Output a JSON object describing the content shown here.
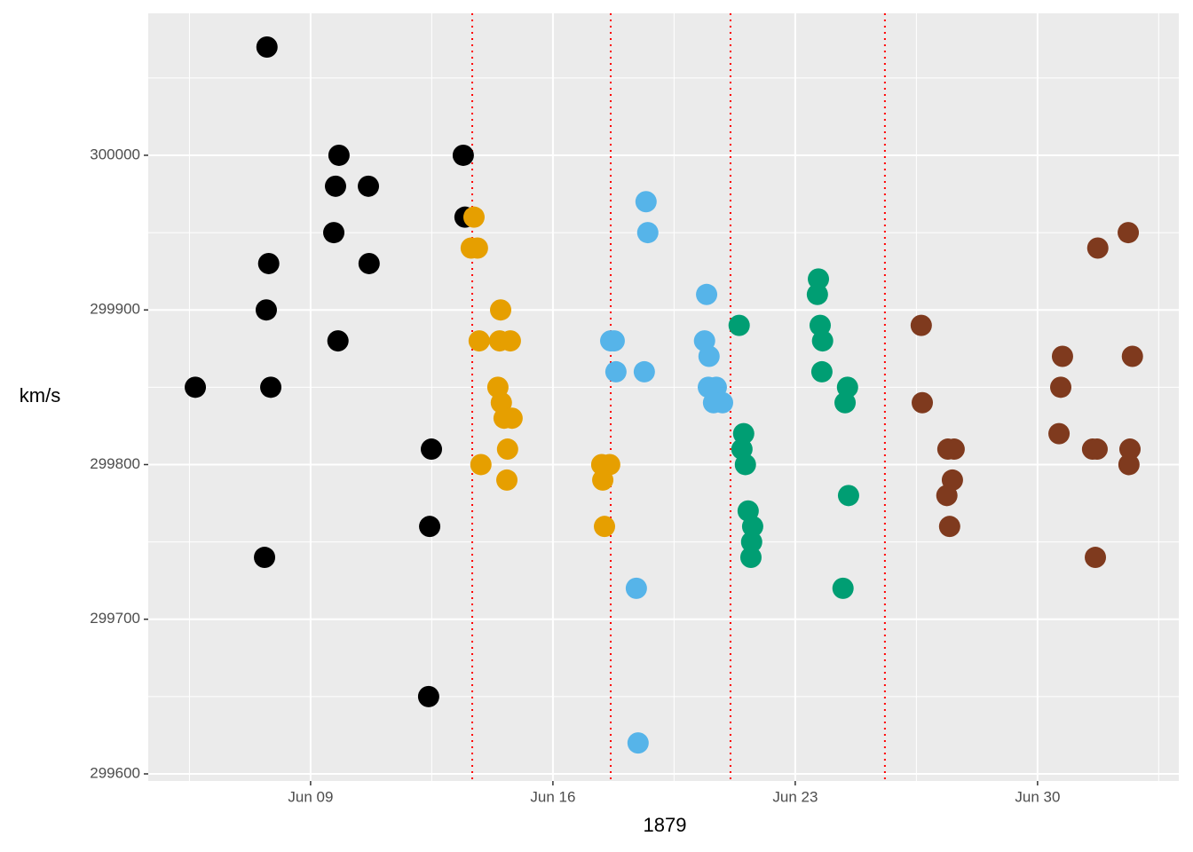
{
  "chart_data": {
    "type": "scatter",
    "xlabel": "1879",
    "ylabel": "km/s",
    "xlim": [
      4.31,
      34.08
    ],
    "ylim": [
      299595.4,
      300091.8
    ],
    "xticks": [
      {
        "value": 9,
        "label": "Jun 09"
      },
      {
        "value": 16,
        "label": "Jun 16"
      },
      {
        "value": 23,
        "label": "Jun 23"
      },
      {
        "value": 30,
        "label": "Jun 30"
      }
    ],
    "x_minor_ticks": [
      5.5,
      12.5,
      19.5,
      26.5,
      33.5
    ],
    "yticks": [
      299600,
      299700,
      299800,
      299900,
      300000
    ],
    "y_minor_ticks": [
      299650,
      299750,
      299850,
      299950,
      300050
    ],
    "grid": true,
    "vlines": [
      13.67,
      17.67,
      21.13,
      25.59
    ],
    "vline_color": "#ff0000",
    "series": [
      {
        "color": "#000000",
        "x": [
          7.74,
          5.67,
          9.82,
          9.72,
          10.67,
          9.67,
          7.79,
          10.69,
          7.72,
          9.79,
          7.85,
          12.49,
          12.44,
          7.67,
          12.41,
          13.41,
          13.46
        ],
        "values": [
          300070,
          299850,
          300000,
          299980,
          299980,
          299950,
          299930,
          299930,
          299900,
          299880,
          299850,
          299810,
          299760,
          299740,
          299650,
          300000,
          299960
        ]
      },
      {
        "color": "#E69F00",
        "x": [
          13.72,
          13.64,
          13.82,
          14.49,
          13.87,
          14.46,
          14.77,
          14.41,
          14.51,
          14.59,
          14.82,
          14.69,
          13.92,
          14.67,
          17.41,
          17.64,
          17.44,
          17.49
        ],
        "values": [
          299960,
          299940,
          299940,
          299900,
          299880,
          299880,
          299880,
          299850,
          299840,
          299830,
          299830,
          299810,
          299800,
          299790,
          299800,
          299800,
          299790,
          299760
        ]
      },
      {
        "color": "#56B4E9",
        "x": [
          18.69,
          18.74,
          20.44,
          17.67,
          17.77,
          20.38,
          20.51,
          17.82,
          18.64,
          20.49,
          20.72,
          20.64,
          20.9,
          18.41,
          18.46
        ],
        "values": [
          299970,
          299950,
          299910,
          299880,
          299880,
          299880,
          299870,
          299860,
          299860,
          299850,
          299850,
          299840,
          299840,
          299720,
          299620
        ]
      },
      {
        "color": "#009E73",
        "x": [
          21.38,
          21.51,
          21.46,
          21.56,
          21.64,
          21.77,
          21.74,
          21.72,
          23.67,
          23.64,
          23.72,
          23.79,
          23.77,
          24.51,
          24.44,
          24.54,
          24.38
        ],
        "values": [
          299890,
          299820,
          299810,
          299800,
          299770,
          299760,
          299750,
          299740,
          299920,
          299910,
          299890,
          299880,
          299860,
          299850,
          299840,
          299780,
          299720
        ]
      },
      {
        "color": "#7F3A1E",
        "x": [
          26.64,
          26.67,
          27.41,
          27.59,
          27.54,
          27.38,
          27.46,
          31.74,
          32.62,
          30.72,
          32.74,
          30.67,
          30.62,
          31.59,
          31.72,
          32.67,
          32.64,
          31.67
        ],
        "values": [
          299890,
          299840,
          299810,
          299810,
          299790,
          299780,
          299760,
          299940,
          299950,
          299870,
          299870,
          299850,
          299820,
          299810,
          299810,
          299810,
          299800,
          299740
        ]
      }
    ]
  }
}
